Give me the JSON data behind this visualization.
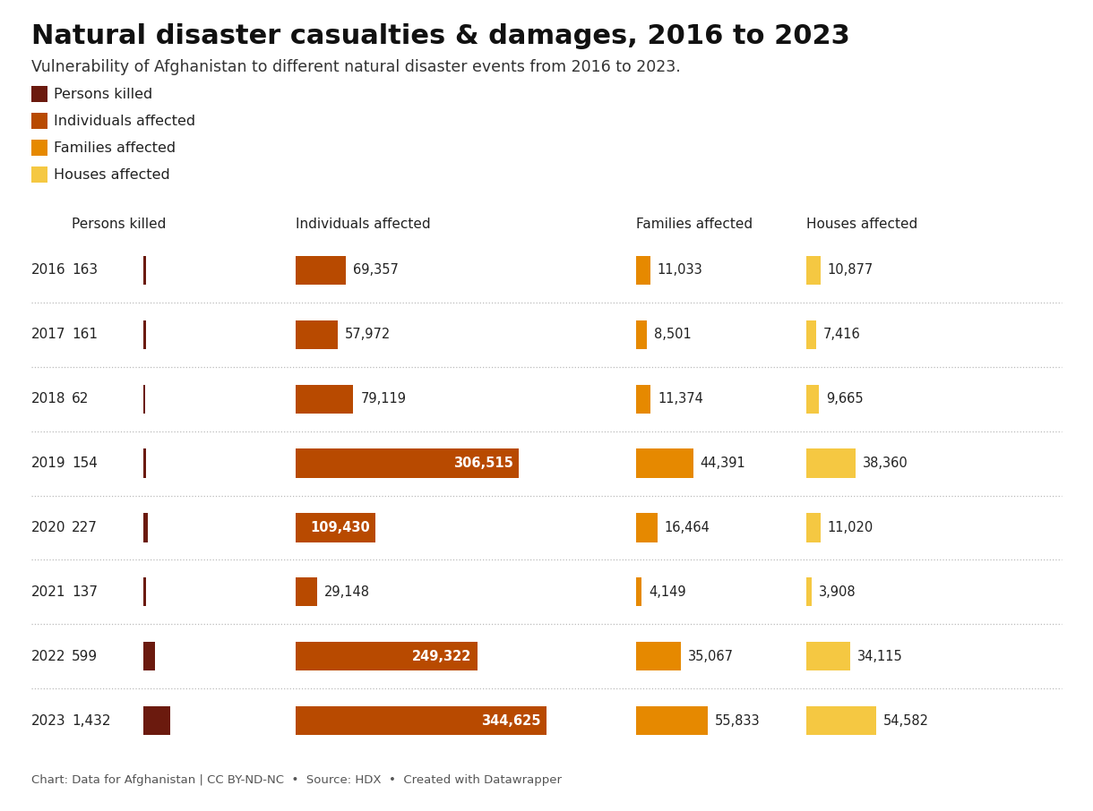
{
  "title": "Natural disaster casualties & damages, 2016 to 2023",
  "subtitle": "Vulnerability of Afghanistan to different natural disaster events from 2016 to 2023.",
  "footer": "Chart: Data for Afghanistan | CC BY-ND-NC  •  Source: HDX  •  Created with Datawrapper",
  "years": [
    2016,
    2017,
    2018,
    2019,
    2020,
    2021,
    2022,
    2023
  ],
  "persons_killed": [
    163,
    161,
    62,
    154,
    227,
    137,
    599,
    1432
  ],
  "individuals_affected": [
    69357,
    57972,
    79119,
    306515,
    109430,
    29148,
    249322,
    344625
  ],
  "families_affected": [
    11033,
    8501,
    11374,
    44391,
    16464,
    4149,
    35067,
    55833
  ],
  "houses_affected": [
    10877,
    7416,
    9665,
    38360,
    11020,
    3908,
    34115,
    54582
  ],
  "color_persons_killed": "#6B1A0E",
  "color_individuals_affected": "#B84A00",
  "color_families_affected": "#E68900",
  "color_houses_affected": "#F5C842",
  "background_color": "#FFFFFF",
  "col_headers": [
    "Persons killed",
    "Individuals affected",
    "Families affected",
    "Houses affected"
  ],
  "max_individuals": 344625,
  "max_families": 55833,
  "max_houses": 54582,
  "max_persons": 1432
}
